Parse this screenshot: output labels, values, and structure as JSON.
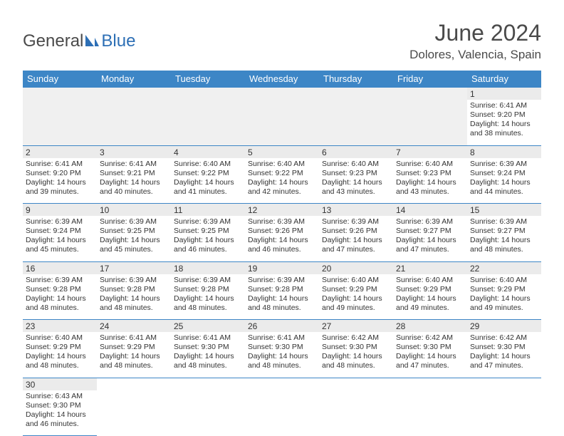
{
  "logo": {
    "general": "General",
    "blue": "Blue"
  },
  "title": "June 2024",
  "location": "Dolores, Valencia, Spain",
  "colors": {
    "header_bg": "#3d86c6",
    "header_text": "#ffffff",
    "daynum_bg": "#ebebeb",
    "text": "#333333",
    "logo_gray": "#4a4a4a",
    "logo_blue": "#2d6fb5"
  },
  "day_labels": [
    "Sunday",
    "Monday",
    "Tuesday",
    "Wednesday",
    "Thursday",
    "Friday",
    "Saturday"
  ],
  "weeks": [
    [
      null,
      null,
      null,
      null,
      null,
      null,
      {
        "n": "1",
        "sr": "6:41 AM",
        "ss": "9:20 PM",
        "dh": "14",
        "dm": "38"
      }
    ],
    [
      {
        "n": "2",
        "sr": "6:41 AM",
        "ss": "9:20 PM",
        "dh": "14",
        "dm": "39"
      },
      {
        "n": "3",
        "sr": "6:41 AM",
        "ss": "9:21 PM",
        "dh": "14",
        "dm": "40"
      },
      {
        "n": "4",
        "sr": "6:40 AM",
        "ss": "9:22 PM",
        "dh": "14",
        "dm": "41"
      },
      {
        "n": "5",
        "sr": "6:40 AM",
        "ss": "9:22 PM",
        "dh": "14",
        "dm": "42"
      },
      {
        "n": "6",
        "sr": "6:40 AM",
        "ss": "9:23 PM",
        "dh": "14",
        "dm": "43"
      },
      {
        "n": "7",
        "sr": "6:40 AM",
        "ss": "9:23 PM",
        "dh": "14",
        "dm": "43"
      },
      {
        "n": "8",
        "sr": "6:39 AM",
        "ss": "9:24 PM",
        "dh": "14",
        "dm": "44"
      }
    ],
    [
      {
        "n": "9",
        "sr": "6:39 AM",
        "ss": "9:24 PM",
        "dh": "14",
        "dm": "45"
      },
      {
        "n": "10",
        "sr": "6:39 AM",
        "ss": "9:25 PM",
        "dh": "14",
        "dm": "45"
      },
      {
        "n": "11",
        "sr": "6:39 AM",
        "ss": "9:25 PM",
        "dh": "14",
        "dm": "46"
      },
      {
        "n": "12",
        "sr": "6:39 AM",
        "ss": "9:26 PM",
        "dh": "14",
        "dm": "46"
      },
      {
        "n": "13",
        "sr": "6:39 AM",
        "ss": "9:26 PM",
        "dh": "14",
        "dm": "47"
      },
      {
        "n": "14",
        "sr": "6:39 AM",
        "ss": "9:27 PM",
        "dh": "14",
        "dm": "47"
      },
      {
        "n": "15",
        "sr": "6:39 AM",
        "ss": "9:27 PM",
        "dh": "14",
        "dm": "48"
      }
    ],
    [
      {
        "n": "16",
        "sr": "6:39 AM",
        "ss": "9:28 PM",
        "dh": "14",
        "dm": "48"
      },
      {
        "n": "17",
        "sr": "6:39 AM",
        "ss": "9:28 PM",
        "dh": "14",
        "dm": "48"
      },
      {
        "n": "18",
        "sr": "6:39 AM",
        "ss": "9:28 PM",
        "dh": "14",
        "dm": "48"
      },
      {
        "n": "19",
        "sr": "6:39 AM",
        "ss": "9:28 PM",
        "dh": "14",
        "dm": "48"
      },
      {
        "n": "20",
        "sr": "6:40 AM",
        "ss": "9:29 PM",
        "dh": "14",
        "dm": "49"
      },
      {
        "n": "21",
        "sr": "6:40 AM",
        "ss": "9:29 PM",
        "dh": "14",
        "dm": "49"
      },
      {
        "n": "22",
        "sr": "6:40 AM",
        "ss": "9:29 PM",
        "dh": "14",
        "dm": "49"
      }
    ],
    [
      {
        "n": "23",
        "sr": "6:40 AM",
        "ss": "9:29 PM",
        "dh": "14",
        "dm": "48"
      },
      {
        "n": "24",
        "sr": "6:41 AM",
        "ss": "9:29 PM",
        "dh": "14",
        "dm": "48"
      },
      {
        "n": "25",
        "sr": "6:41 AM",
        "ss": "9:30 PM",
        "dh": "14",
        "dm": "48"
      },
      {
        "n": "26",
        "sr": "6:41 AM",
        "ss": "9:30 PM",
        "dh": "14",
        "dm": "48"
      },
      {
        "n": "27",
        "sr": "6:42 AM",
        "ss": "9:30 PM",
        "dh": "14",
        "dm": "48"
      },
      {
        "n": "28",
        "sr": "6:42 AM",
        "ss": "9:30 PM",
        "dh": "14",
        "dm": "47"
      },
      {
        "n": "29",
        "sr": "6:42 AM",
        "ss": "9:30 PM",
        "dh": "14",
        "dm": "47"
      }
    ],
    [
      {
        "n": "30",
        "sr": "6:43 AM",
        "ss": "9:30 PM",
        "dh": "14",
        "dm": "46"
      },
      null,
      null,
      null,
      null,
      null,
      null
    ]
  ],
  "labels": {
    "sunrise": "Sunrise:",
    "sunset": "Sunset:",
    "daylight": "Daylight:",
    "hours_word": "hours",
    "and_word": "and",
    "minutes_word": "minutes."
  }
}
